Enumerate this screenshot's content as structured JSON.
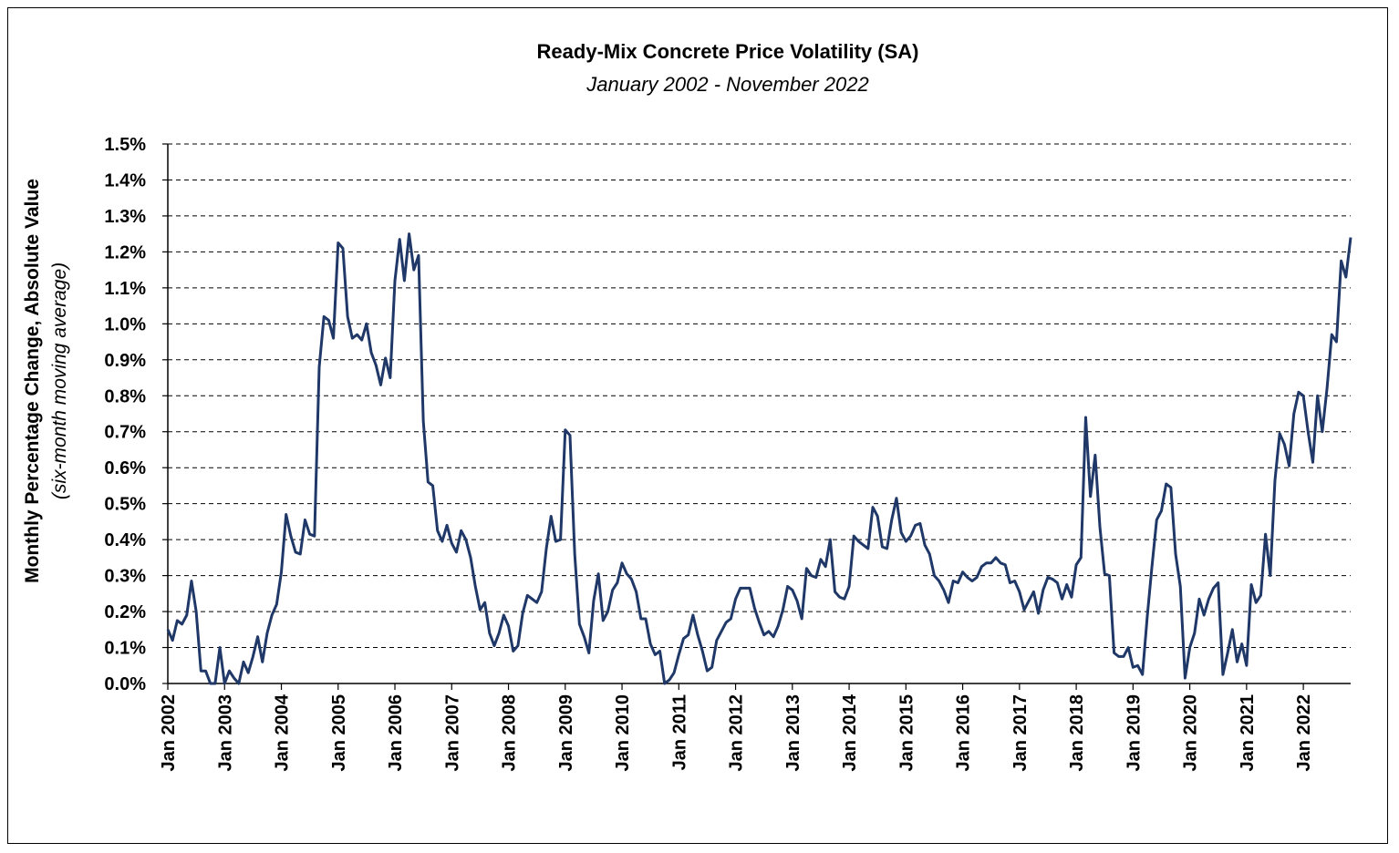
{
  "chart_data": {
    "type": "line",
    "title": "Ready-Mix Concrete Price Volatility (SA)",
    "subtitle": "January 2002 - November 2022",
    "ylabel": "Monthly Percentage Change, Absolute Value",
    "ylabel_note": "(six-month moving average)",
    "xlabel": "",
    "ylim": [
      0.0,
      1.5
    ],
    "y_tick_labels": [
      "0.0%",
      "0.1%",
      "0.2%",
      "0.3%",
      "0.4%",
      "0.5%",
      "0.6%",
      "0.7%",
      "0.8%",
      "0.9%",
      "1.0%",
      "1.1%",
      "1.2%",
      "1.3%",
      "1.4%",
      "1.5%"
    ],
    "x_tick_labels": [
      "Jan 2002",
      "Jan 2003",
      "Jan 2004",
      "Jan 2005",
      "Jan 2006",
      "Jan 2007",
      "Jan 2008",
      "Jan 2009",
      "Jan 2010",
      "Jan 2011",
      "Jan 2012",
      "Jan 2013",
      "Jan 2014",
      "Jan 2015",
      "Jan 2016",
      "Jan 2017",
      "Jan 2018",
      "Jan 2019",
      "Jan 2020",
      "Jan 2021",
      "Jan 2022"
    ],
    "x_start": "Jan 2002",
    "x_end": "Nov 2022",
    "grid": "horizontal dashed",
    "line_color": "#1f3868",
    "series": [
      {
        "name": "",
        "values": [
          0.15,
          0.12,
          0.175,
          0.165,
          0.19,
          0.285,
          0.2,
          0.035,
          0.035,
          0.0,
          0.0,
          0.1,
          0.0,
          0.035,
          0.015,
          0.0,
          0.06,
          0.03,
          0.075,
          0.13,
          0.06,
          0.14,
          0.19,
          0.22,
          0.31,
          0.47,
          0.41,
          0.365,
          0.36,
          0.455,
          0.415,
          0.41,
          0.88,
          1.02,
          1.01,
          0.96,
          1.225,
          1.21,
          1.02,
          0.96,
          0.97,
          0.955,
          1.0,
          0.92,
          0.885,
          0.83,
          0.905,
          0.85,
          1.12,
          1.235,
          1.12,
          1.25,
          1.15,
          1.19,
          0.73,
          0.56,
          0.55,
          0.425,
          0.395,
          0.44,
          0.39,
          0.365,
          0.425,
          0.4,
          0.35,
          0.27,
          0.205,
          0.225,
          0.14,
          0.105,
          0.14,
          0.19,
          0.16,
          0.09,
          0.105,
          0.195,
          0.245,
          0.235,
          0.225,
          0.255,
          0.375,
          0.465,
          0.395,
          0.4,
          0.705,
          0.69,
          0.36,
          0.165,
          0.13,
          0.085,
          0.23,
          0.305,
          0.175,
          0.2,
          0.26,
          0.28,
          0.335,
          0.305,
          0.29,
          0.255,
          0.18,
          0.18,
          0.11,
          0.08,
          0.09,
          0.0,
          0.01,
          0.03,
          0.08,
          0.125,
          0.135,
          0.19,
          0.135,
          0.09,
          0.035,
          0.045,
          0.12,
          0.145,
          0.17,
          0.18,
          0.235,
          0.265,
          0.265,
          0.265,
          0.21,
          0.17,
          0.135,
          0.145,
          0.13,
          0.16,
          0.205,
          0.27,
          0.26,
          0.23,
          0.18,
          0.32,
          0.3,
          0.295,
          0.345,
          0.325,
          0.4,
          0.255,
          0.24,
          0.235,
          0.27,
          0.41,
          0.395,
          0.385,
          0.375,
          0.49,
          0.465,
          0.38,
          0.375,
          0.455,
          0.515,
          0.42,
          0.395,
          0.41,
          0.44,
          0.445,
          0.385,
          0.36,
          0.3,
          0.285,
          0.26,
          0.225,
          0.285,
          0.28,
          0.31,
          0.295,
          0.285,
          0.295,
          0.325,
          0.335,
          0.335,
          0.35,
          0.335,
          0.33,
          0.28,
          0.285,
          0.255,
          0.205,
          0.23,
          0.255,
          0.195,
          0.26,
          0.295,
          0.29,
          0.28,
          0.235,
          0.275,
          0.24,
          0.33,
          0.35,
          0.74,
          0.52,
          0.635,
          0.435,
          0.305,
          0.3,
          0.085,
          0.075,
          0.075,
          0.1,
          0.045,
          0.05,
          0.025,
          0.185,
          0.325,
          0.455,
          0.48,
          0.555,
          0.545,
          0.36,
          0.27,
          0.015,
          0.1,
          0.14,
          0.235,
          0.19,
          0.235,
          0.265,
          0.28,
          0.025,
          0.085,
          0.15,
          0.06,
          0.11,
          0.05,
          0.275,
          0.225,
          0.245,
          0.415,
          0.3,
          0.565,
          0.695,
          0.665,
          0.605,
          0.75,
          0.81,
          0.8,
          0.7,
          0.615,
          0.8,
          0.7,
          0.82,
          0.97,
          0.95,
          1.175,
          1.13,
          1.24
        ]
      }
    ]
  }
}
